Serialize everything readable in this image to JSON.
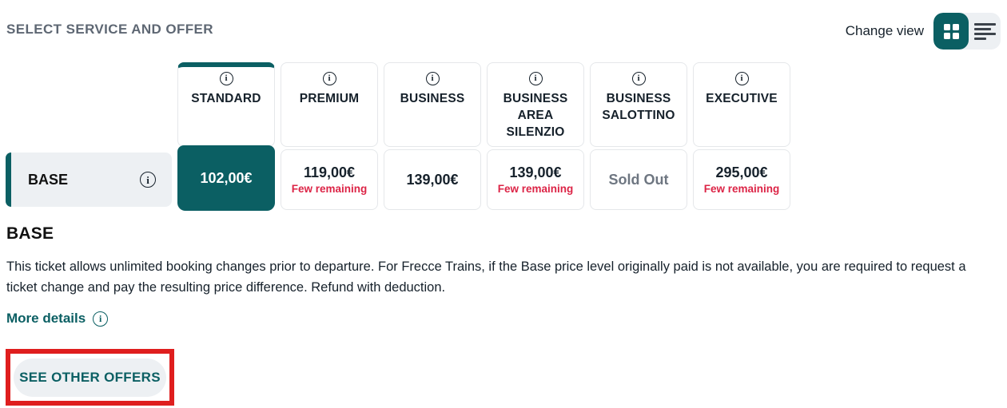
{
  "header": {
    "title": "SELECT SERVICE AND OFFER",
    "change_view_label": "Change view",
    "view_toggle": {
      "active": "grid",
      "grid_icon": "grid-squares",
      "list_icon": "horizontal-lines"
    }
  },
  "icons": {
    "info_glyph": "i"
  },
  "colors": {
    "brand_teal": "#0b5f63",
    "alert_red": "#dc2446",
    "annotation_red": "#df1e1e",
    "row_background": "#edf0f3",
    "muted_gray": "#6e7681",
    "card_border": "#e5e7ea",
    "title_gray": "#5e6773"
  },
  "fare_matrix": {
    "services": [
      {
        "name": "STANDARD",
        "selected": true
      },
      {
        "name": "PREMIUM",
        "selected": false
      },
      {
        "name": "BUSINESS",
        "selected": false
      },
      {
        "name": "BUSINESS AREA SILENZIO",
        "selected": false
      },
      {
        "name": "BUSINESS SALOTTINO",
        "selected": false
      },
      {
        "name": "EXECUTIVE",
        "selected": false
      }
    ],
    "offer_row": {
      "label": "BASE",
      "cells": [
        {
          "price": "102,00€",
          "state": "selected"
        },
        {
          "price": "119,00€",
          "note": "Few remaining"
        },
        {
          "price": "139,00€"
        },
        {
          "price": "139,00€",
          "note": "Few remaining"
        },
        {
          "price": "Sold Out",
          "state": "sold-out"
        },
        {
          "price": "295,00€",
          "note": "Few remaining"
        }
      ]
    }
  },
  "details": {
    "heading": "BASE",
    "description": "This ticket allows unlimited booking changes prior to departure. For Frecce Trains, if the Base price level originally paid is not available, you are required to request a ticket change and pay the resulting price difference. Refund with deduction.",
    "more_details_label": "More details"
  },
  "cta": {
    "label": "SEE OTHER OFFERS"
  }
}
